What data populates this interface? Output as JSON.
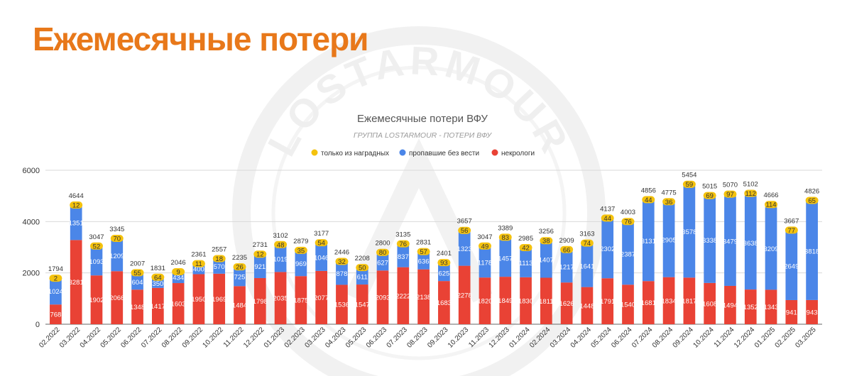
{
  "page": {
    "heading": "Ежемесячные потери",
    "watermark": "LOSTARMOUR"
  },
  "colors": {
    "heading": "#e8781a",
    "awards_only": "#f4c20d",
    "missing": "#4b86e8",
    "obituaries": "#e94235"
  },
  "chart_data": {
    "type": "bar",
    "stacked": true,
    "title": "Ежемесячные потери ВФУ",
    "subtitle": "ГРУППА LOSTARMOUR - ПОТЕРИ ВФУ",
    "xlabel": "",
    "ylabel": "",
    "ylim": [
      0,
      6000
    ],
    "yticks": [
      0,
      2000,
      4000,
      6000
    ],
    "grid": true,
    "legend_position": "top",
    "categories": [
      "02.2022",
      "03.2022",
      "04.2022",
      "05.2022",
      "06.2022",
      "07.2022",
      "08.2022",
      "09.2022",
      "10.2022",
      "11.2022",
      "12.2022",
      "01.2023",
      "02.2023",
      "03.2023",
      "04.2023",
      "05.2023",
      "06.2023",
      "07.2023",
      "08.2023",
      "09.2023",
      "10.2023",
      "11.2023",
      "12.2023",
      "01.2024",
      "02.2024",
      "03.2024",
      "04.2024",
      "05.2024",
      "06.2024",
      "07.2024",
      "08.2024",
      "09.2024",
      "10.2024",
      "11.2024",
      "12.2024",
      "01.2025",
      "02.2025",
      "03.2025"
    ],
    "series": [
      {
        "name": "некрологи",
        "color": "#e94235",
        "values": [
          768,
          3281,
          1902,
          2066,
          1348,
          1417,
          1603,
          1950,
          1969,
          1484,
          1798,
          2035,
          1875,
          2077,
          1536,
          1547,
          2093,
          2222,
          2138,
          1683,
          2278,
          1820,
          1849,
          1830,
          1811,
          1626,
          1448,
          1791,
          1540,
          1681,
          1834,
          1817,
          1608,
          1494,
          1352,
          1343,
          941,
          943
        ]
      },
      {
        "name": "пропавшие без вести",
        "color": "#4b86e8",
        "values": [
          1024,
          1351,
          1093,
          1209,
          604,
          350,
          434,
          400,
          570,
          725,
          921,
          1019,
          969,
          1046,
          878,
          611,
          627,
          837,
          636,
          625,
          1323,
          1178,
          1457,
          1113,
          1407,
          1217,
          1641,
          2302,
          2387,
          3131,
          2905,
          3578,
          3338,
          3479,
          3638,
          3209,
          2649,
          3818
        ]
      },
      {
        "name": "только из наградных",
        "color": "#f4c20d",
        "values": [
          2,
          12,
          52,
          70,
          55,
          64,
          9,
          11,
          18,
          26,
          12,
          48,
          35,
          54,
          32,
          50,
          80,
          76,
          57,
          93,
          56,
          49,
          83,
          42,
          38,
          66,
          74,
          44,
          76,
          44,
          36,
          59,
          69,
          97,
          112,
          114,
          77,
          65
        ]
      }
    ],
    "totals": [
      1794,
      4644,
      3047,
      3345,
      2007,
      1831,
      2046,
      2361,
      2557,
      2235,
      2731,
      3102,
      2879,
      3177,
      2446,
      2208,
      2800,
      3135,
      2831,
      2401,
      3657,
      3047,
      3389,
      2985,
      3256,
      2909,
      3163,
      4137,
      4003,
      4856,
      4775,
      5454,
      5015,
      5070,
      5102,
      4666,
      3667,
      4826
    ],
    "legend": [
      "только из наградных",
      "пропавшие без вести",
      "некрологи"
    ]
  }
}
